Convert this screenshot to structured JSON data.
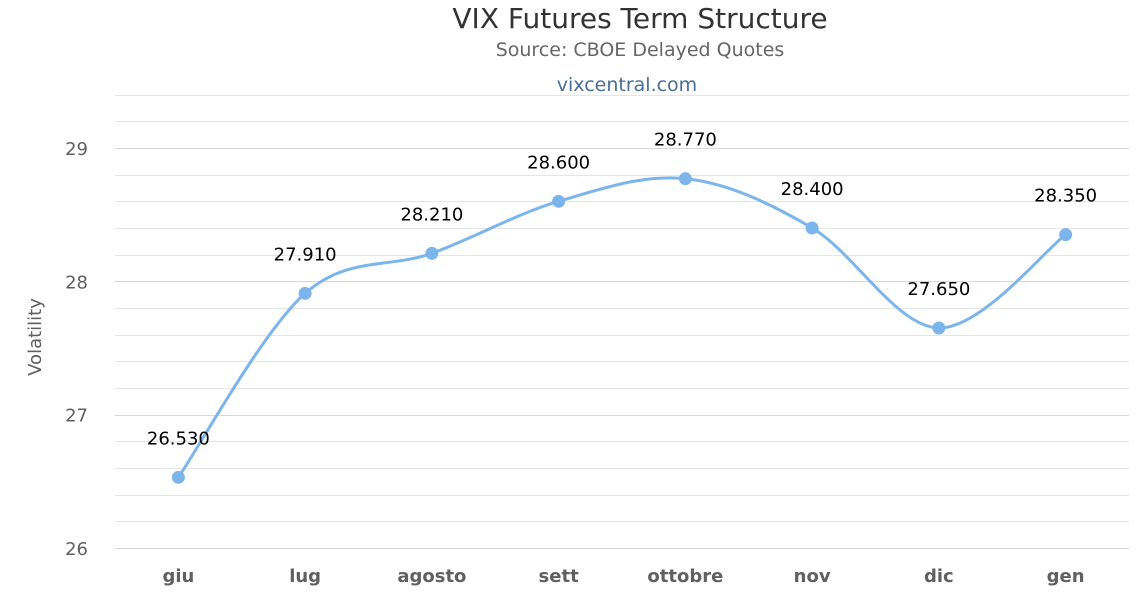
{
  "chart_data": {
    "type": "line",
    "title": "VIX Futures Term Structure",
    "subtitle": "Source: CBOE Delayed Quotes",
    "credit": "vixcentral.com",
    "xlabel": "",
    "ylabel": "Volatility",
    "categories": [
      "giu",
      "lug",
      "agosto",
      "sett",
      "ottobre",
      "nov",
      "dic",
      "gen"
    ],
    "series": [
      {
        "values": [
          26.53,
          27.91,
          28.21,
          28.6,
          28.77,
          28.4,
          27.65,
          28.35
        ],
        "labels": [
          "26.530",
          "27.910",
          "28.210",
          "28.600",
          "28.770",
          "28.400",
          "27.650",
          "28.350"
        ]
      }
    ],
    "ylim": [
      26,
      29.3
    ],
    "yticks": [
      26,
      27,
      28,
      29
    ],
    "ytick_labels": [
      "26",
      "27",
      "28",
      "29"
    ],
    "minor_grid_step": 0.2,
    "grid": true,
    "line_style": "smooth",
    "color": "#7cb5ec"
  }
}
